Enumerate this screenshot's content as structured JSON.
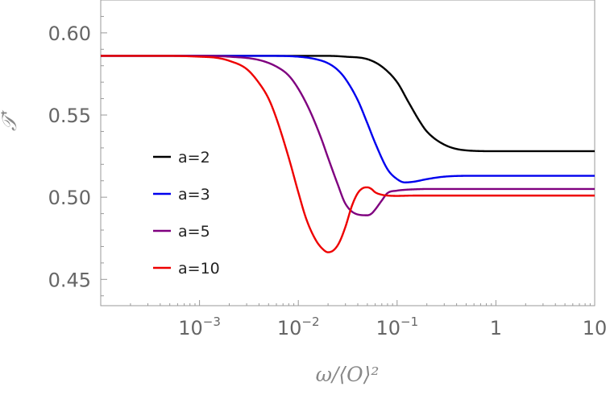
{
  "chart_data": {
    "type": "line",
    "xscale": "log",
    "xlim": [
      0.0001,
      10
    ],
    "ylim": [
      0.434,
      0.62
    ],
    "xlabel": "ω/⟨O⟩²",
    "ylabel": "𝒯'",
    "x_ticks": [
      {
        "value": 0.001,
        "base": "10",
        "exp": "−3"
      },
      {
        "value": 0.01,
        "base": "10",
        "exp": "−2"
      },
      {
        "value": 0.1,
        "base": "10",
        "exp": "−1"
      },
      {
        "value": 1,
        "base": "1",
        "exp": ""
      },
      {
        "value": 10,
        "base": "10",
        "exp": ""
      }
    ],
    "y_ticks": [
      {
        "value": 0.45,
        "label": "0.45"
      },
      {
        "value": 0.5,
        "label": "0.50"
      },
      {
        "value": 0.55,
        "label": "0.55"
      },
      {
        "value": 0.6,
        "label": "0.60"
      }
    ],
    "grid": false,
    "legend_position": "center-left",
    "series": [
      {
        "name": "a=2",
        "color": "#000000",
        "x": [
          0.0001,
          0.001,
          0.005,
          0.01,
          0.02,
          0.03,
          0.05,
          0.07,
          0.1,
          0.13,
          0.17,
          0.2,
          0.3,
          0.5,
          1,
          10
        ],
        "y": [
          0.586,
          0.586,
          0.586,
          0.586,
          0.586,
          0.5855,
          0.584,
          0.5795,
          0.57,
          0.558,
          0.546,
          0.54,
          0.532,
          0.5285,
          0.528,
          0.528
        ]
      },
      {
        "name": "a=3",
        "color": "#0000ee",
        "x": [
          0.0001,
          0.001,
          0.005,
          0.01,
          0.015,
          0.02,
          0.025,
          0.03,
          0.04,
          0.05,
          0.06,
          0.08,
          0.1,
          0.12,
          0.15,
          0.2,
          0.3,
          0.5,
          1,
          10
        ],
        "y": [
          0.586,
          0.586,
          0.586,
          0.5855,
          0.584,
          0.5815,
          0.5775,
          0.572,
          0.559,
          0.545,
          0.533,
          0.517,
          0.511,
          0.509,
          0.5095,
          0.511,
          0.5125,
          0.513,
          0.513,
          0.513
        ]
      },
      {
        "name": "a=5",
        "color": "#7f007f",
        "x": [
          0.0001,
          0.001,
          0.002,
          0.004,
          0.006,
          0.008,
          0.01,
          0.013,
          0.017,
          0.02,
          0.025,
          0.03,
          0.04,
          0.05,
          0.055,
          0.06,
          0.07,
          0.08,
          0.1,
          0.12,
          0.15,
          0.2,
          0.5,
          1,
          10
        ],
        "y": [
          0.586,
          0.586,
          0.5855,
          0.5835,
          0.5795,
          0.574,
          0.566,
          0.553,
          0.536,
          0.524,
          0.508,
          0.496,
          0.4895,
          0.489,
          0.49,
          0.4925,
          0.498,
          0.5025,
          0.504,
          0.5045,
          0.5048,
          0.505,
          0.505,
          0.505,
          0.505
        ]
      },
      {
        "name": "a=10",
        "color": "#ee0000",
        "x": [
          0.0001,
          0.0005,
          0.001,
          0.0015,
          0.002,
          0.003,
          0.004,
          0.005,
          0.006,
          0.008,
          0.01,
          0.012,
          0.015,
          0.018,
          0.02,
          0.023,
          0.026,
          0.03,
          0.035,
          0.04,
          0.045,
          0.05,
          0.055,
          0.06,
          0.07,
          0.08,
          0.1,
          0.15,
          0.3,
          1,
          10
        ],
        "y": [
          0.586,
          0.586,
          0.5855,
          0.5848,
          0.583,
          0.578,
          0.5695,
          0.56,
          0.548,
          0.524,
          0.503,
          0.487,
          0.474,
          0.468,
          0.4665,
          0.468,
          0.4725,
          0.482,
          0.495,
          0.5025,
          0.5055,
          0.506,
          0.505,
          0.503,
          0.5015,
          0.501,
          0.5008,
          0.501,
          0.501,
          0.501,
          0.501
        ]
      }
    ]
  }
}
